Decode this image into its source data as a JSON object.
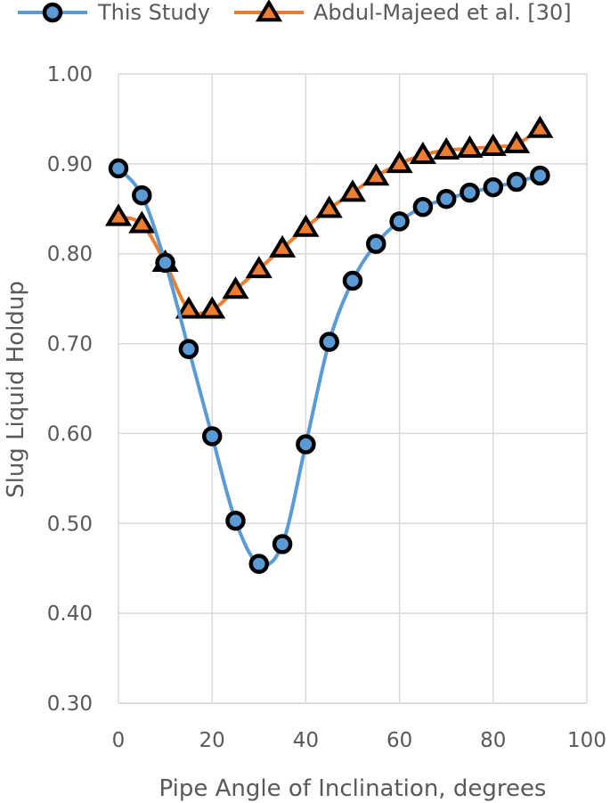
{
  "chart_data": {
    "type": "line",
    "title": "",
    "xlabel": "Pipe Angle of Inclination, degrees",
    "ylabel": "Slug Liquid Holdup",
    "xlim": [
      0,
      100
    ],
    "ylim": [
      0.3,
      1.0
    ],
    "x_ticks": [
      "0",
      "20",
      "40",
      "60",
      "80",
      "100"
    ],
    "y_ticks": [
      "0.30",
      "0.40",
      "0.50",
      "0.60",
      "0.70",
      "0.80",
      "0.90",
      "1.00"
    ],
    "grid": true,
    "legend_position": "top",
    "series": [
      {
        "name": "This Study",
        "color": "#5b9bd5",
        "marker": "circle",
        "x": [
          0,
          5,
          10,
          15,
          20,
          25,
          30,
          35,
          40,
          45,
          50,
          55,
          60,
          65,
          70,
          75,
          80,
          85,
          90
        ],
        "y": [
          0.895,
          0.865,
          0.79,
          0.694,
          0.597,
          0.503,
          0.455,
          0.477,
          0.588,
          0.702,
          0.77,
          0.811,
          0.836,
          0.852,
          0.861,
          0.868,
          0.874,
          0.88,
          0.887
        ]
      },
      {
        "name": "Abdul-Majeed et al. [30]",
        "color": "#ed7d31",
        "marker": "triangle",
        "x": [
          0,
          5,
          10,
          15,
          20,
          25,
          30,
          35,
          40,
          45,
          50,
          55,
          60,
          65,
          70,
          75,
          80,
          85,
          90
        ],
        "y": [
          0.841,
          0.833,
          0.79,
          0.738,
          0.738,
          0.76,
          0.783,
          0.806,
          0.829,
          0.85,
          0.868,
          0.886,
          0.9,
          0.91,
          0.915,
          0.917,
          0.919,
          0.922,
          0.939
        ]
      }
    ]
  }
}
